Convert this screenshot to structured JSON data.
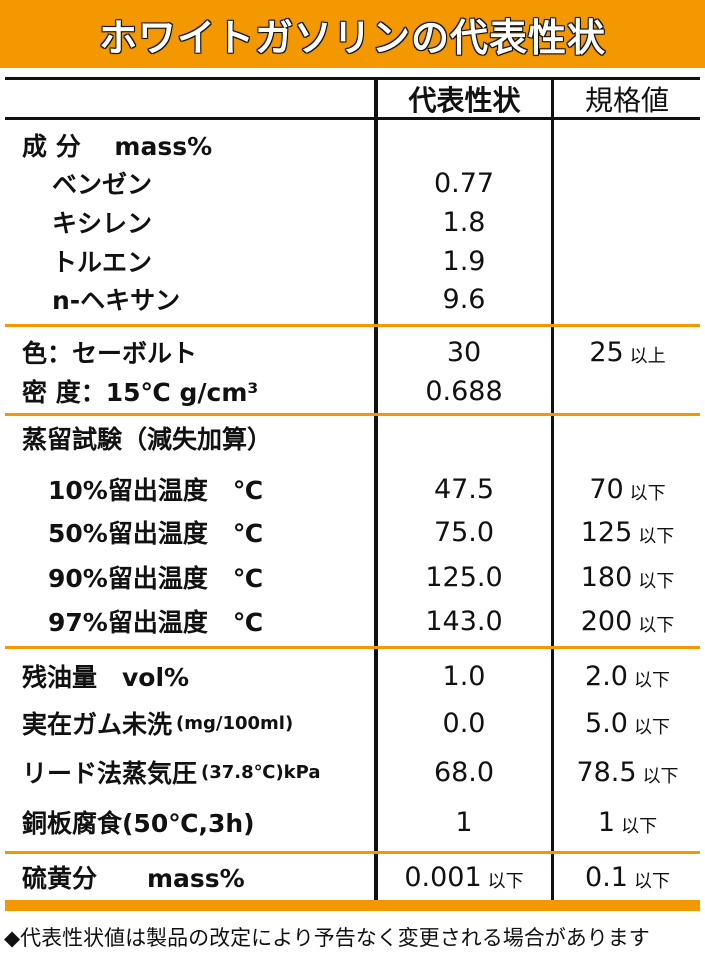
{
  "title": "ホワイトガソリンの代表性状",
  "headers": {
    "typical": "代表性状",
    "spec": "規格値"
  },
  "accent_color": "#F39800",
  "rows": [
    {
      "label": "成 分　 mass%",
      "value": "",
      "value_suffix": "",
      "spec": "",
      "spec_suffix": ""
    },
    {
      "label": "ベンゼン",
      "value": "0.77",
      "value_suffix": "",
      "spec": "",
      "spec_suffix": ""
    },
    {
      "label": "キシレン",
      "value": "1.8",
      "value_suffix": "",
      "spec": "",
      "spec_suffix": ""
    },
    {
      "label": "トルエン",
      "value": "1.9",
      "value_suffix": "",
      "spec": "",
      "spec_suffix": ""
    },
    {
      "label": "n-ヘキサン",
      "value": "9.6",
      "value_suffix": "",
      "spec": "",
      "spec_suffix": ""
    },
    {
      "label": "色：セーボルト",
      "value": "30",
      "value_suffix": "",
      "spec": "25",
      "spec_suffix": "以上"
    },
    {
      "label": "密 度：15℃ g/cm³",
      "value": "0.688",
      "value_suffix": "",
      "spec": "",
      "spec_suffix": ""
    },
    {
      "label": "蒸留試験（減失加算）",
      "value": "",
      "value_suffix": "",
      "spec": "",
      "spec_suffix": ""
    },
    {
      "label": "10%留出温度　℃",
      "value": "47.5",
      "value_suffix": "",
      "spec": "70",
      "spec_suffix": "以下"
    },
    {
      "label": "50%留出温度　℃",
      "value": "75.0",
      "value_suffix": "",
      "spec": "125",
      "spec_suffix": "以下"
    },
    {
      "label": "90%留出温度　℃",
      "value": "125.0",
      "value_suffix": "",
      "spec": "180",
      "spec_suffix": "以下"
    },
    {
      "label": "97%留出温度　℃",
      "value": "143.0",
      "value_suffix": "",
      "spec": "200",
      "spec_suffix": "以下"
    },
    {
      "label": "残油量　vol%",
      "value": "1.0",
      "value_suffix": "",
      "spec": "2.0",
      "spec_suffix": "以下"
    },
    {
      "label": "実在ガム未洗",
      "note": "(mg/100ml)",
      "value": "0.0",
      "value_suffix": "",
      "spec": "5.0",
      "spec_suffix": "以下"
    },
    {
      "label": "リード法蒸気圧",
      "note": "(37.8℃)kPa",
      "value": "68.0",
      "value_suffix": "",
      "spec": "78.5",
      "spec_suffix": "以下"
    },
    {
      "label": "銅板腐食(50℃,3h)",
      "value": "1",
      "value_suffix": "",
      "spec": "1",
      "spec_suffix": "以下"
    },
    {
      "label": "硫黄分　　mass%",
      "value": "0.001",
      "value_suffix": "以下",
      "spec": "0.1",
      "spec_suffix": "以下"
    }
  ],
  "footer": "◆代表性状値は製品の改定により予告なく変更される場合があります"
}
